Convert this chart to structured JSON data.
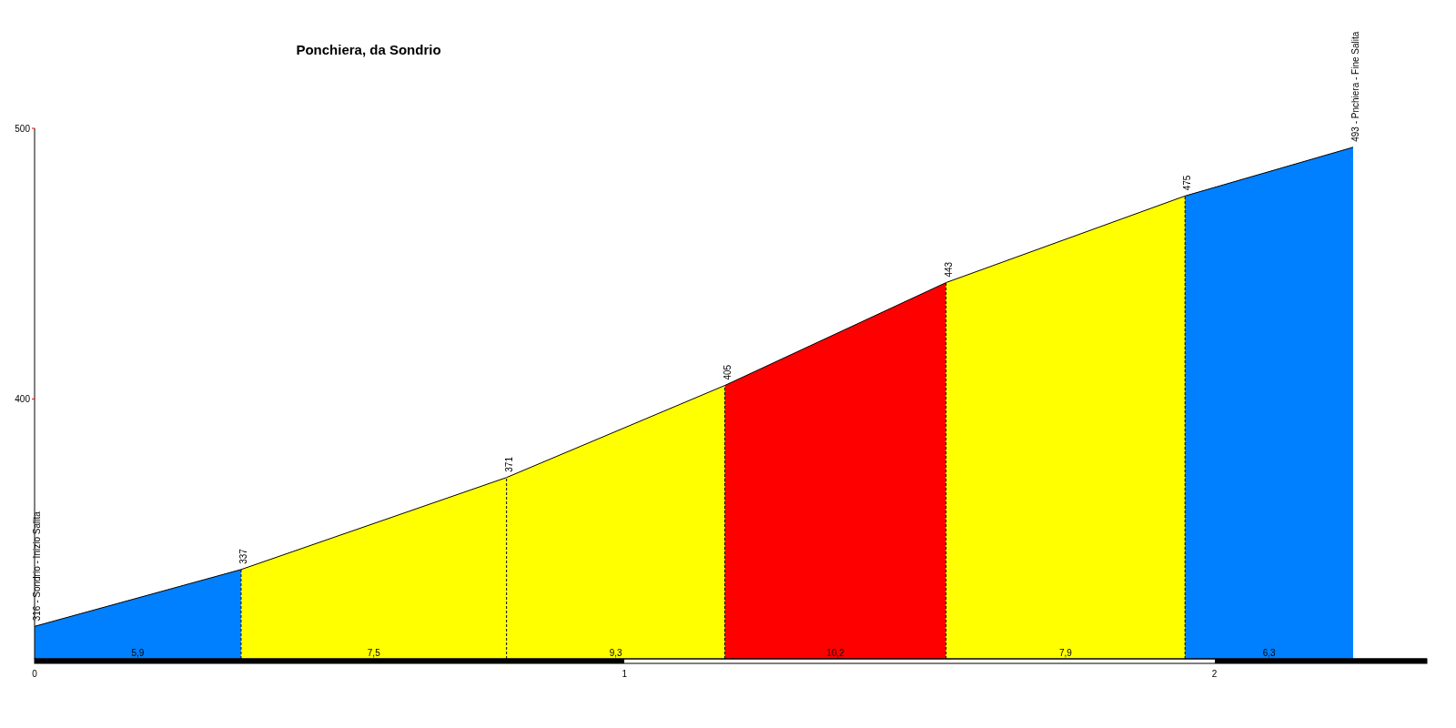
{
  "chart_data": {
    "type": "area",
    "title": "Ponchiera, da Sondrio",
    "series": [
      {
        "color": "#0080ff",
        "x": [
          0,
          0.35
        ],
        "values": [
          316,
          337
        ]
      },
      {
        "color": "#ffff00",
        "x": [
          0.35,
          0.8
        ],
        "values": [
          337,
          371
        ]
      },
      {
        "color": "#ffff00",
        "x": [
          0.8,
          1.17
        ],
        "values": [
          371,
          405
        ]
      },
      {
        "color": "#ff0000",
        "x": [
          1.17,
          1.545
        ],
        "values": [
          405,
          443
        ]
      },
      {
        "color": "#ffff00",
        "x": [
          1.545,
          1.95
        ],
        "values": [
          443,
          475
        ]
      },
      {
        "color": "#0080ff",
        "x": [
          1.95,
          2.235
        ],
        "values": [
          475,
          493
        ]
      }
    ],
    "ref_lines": [
      {
        "axis": "x",
        "value": 0.35,
        "line_style": "dashed",
        "color": "#000000"
      },
      {
        "axis": "x",
        "value": 0.8,
        "line_style": "dashed",
        "color": "#000000"
      },
      {
        "axis": "x",
        "value": 1.17,
        "line_style": "dashed",
        "color": "#000000"
      },
      {
        "axis": "x",
        "value": 1.545,
        "line_style": "dashed",
        "color": "#000000"
      },
      {
        "axis": "x",
        "value": 1.95,
        "line_style": "dashed",
        "color": "#000000"
      }
    ],
    "annotations": [
      {
        "text": "316 - Sondrio - Inizio Salita",
        "x": 0,
        "y": 316
      },
      {
        "text": "337",
        "x": 0.35,
        "y": 337
      },
      {
        "text": "371",
        "x": 0.8,
        "y": 371
      },
      {
        "text": "405",
        "x": 1.17,
        "y": 405
      },
      {
        "text": "443",
        "x": 1.545,
        "y": 443
      },
      {
        "text": "475",
        "x": 1.95,
        "y": 475
      },
      {
        "text": "493 - Pnchiera - Fine Salita",
        "x": 2.235,
        "y": 493
      },
      {
        "text": "5,9",
        "x": 0.175,
        "y": 304
      },
      {
        "text": "7,5",
        "x": 0.575,
        "y": 304
      },
      {
        "text": "9,3",
        "x": 0.985,
        "y": 304
      },
      {
        "text": "10,2",
        "x": 1.3575,
        "y": 304
      },
      {
        "text": "7,9",
        "x": 1.7475,
        "y": 304
      },
      {
        "text": "6,3",
        "x": 2.0925,
        "y": 304
      }
    ],
    "xlim": [
      0,
      2.36
    ],
    "xticks": [
      0,
      1,
      2
    ],
    "ylim": [
      304,
      500
    ],
    "yticks": [
      400,
      500
    ],
    "grid": false
  }
}
